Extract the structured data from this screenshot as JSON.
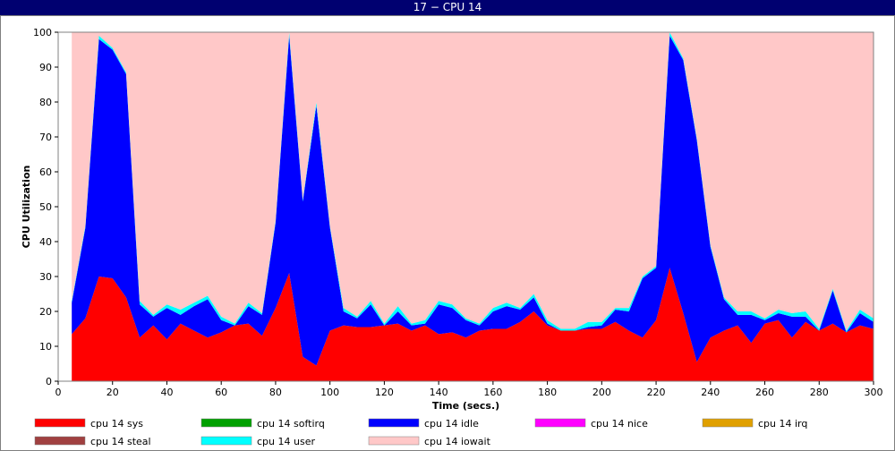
{
  "window": {
    "title": "17 − CPU 14"
  },
  "chart_data": {
    "type": "area",
    "stacked": true,
    "xlabel": "Time (secs.)",
    "ylabel": "CPU Utilization",
    "xlim": [
      0,
      300
    ],
    "ylim": [
      0,
      100
    ],
    "xticks": [
      0,
      20,
      40,
      60,
      80,
      100,
      120,
      140,
      160,
      180,
      200,
      220,
      240,
      260,
      280,
      300
    ],
    "yticks": [
      0,
      10,
      20,
      30,
      40,
      50,
      60,
      70,
      80,
      90,
      100
    ],
    "legend_position": "bottom",
    "x": [
      5,
      10,
      15,
      20,
      25,
      30,
      35,
      40,
      45,
      50,
      55,
      60,
      65,
      70,
      75,
      80,
      85,
      90,
      95,
      100,
      105,
      110,
      115,
      120,
      125,
      130,
      135,
      140,
      145,
      150,
      155,
      160,
      165,
      170,
      175,
      180,
      185,
      190,
      195,
      200,
      205,
      210,
      215,
      220,
      225,
      230,
      235,
      240,
      245,
      250,
      255,
      260,
      265,
      270,
      275,
      280,
      285,
      290,
      295,
      300
    ],
    "series": [
      {
        "name": "cpu 14 sys",
        "color": "#ff0000",
        "values": [
          13.5,
          18,
          30,
          29.5,
          24,
          12.5,
          16,
          12,
          16.5,
          14.5,
          12.5,
          14,
          16,
          16.5,
          13,
          21,
          31,
          7,
          4.5,
          14.5,
          16,
          15.5,
          15.5,
          16,
          16.5,
          14.5,
          16,
          13.5,
          14,
          12.5,
          14.5,
          15,
          15,
          17,
          20,
          16,
          14.5,
          14.5,
          15,
          15,
          17,
          14.5,
          12.5,
          17.5,
          32.5,
          19.5,
          5.5,
          12.5,
          14.5,
          16,
          11,
          16.5,
          17.5,
          12.5,
          17,
          14.5,
          16.5,
          14,
          16,
          15
        ]
      },
      {
        "name": "cpu 14 softirq",
        "color": "#00a000",
        "values": [
          0,
          0,
          0,
          0,
          0,
          0,
          0,
          0,
          0,
          0,
          0,
          0,
          0,
          0,
          0,
          0,
          0,
          0,
          0,
          0,
          0,
          0,
          0,
          0,
          0,
          0,
          0,
          0,
          0,
          0,
          0,
          0,
          0,
          0,
          0,
          0,
          0,
          0,
          0,
          0,
          0,
          0,
          0,
          0,
          0,
          0,
          0,
          0,
          0,
          0,
          0,
          0,
          0,
          0,
          0,
          0,
          0,
          0,
          0,
          0
        ]
      },
      {
        "name": "cpu 14 idle",
        "color": "#0000ff",
        "values": [
          9,
          26,
          68,
          65.5,
          64,
          9.5,
          2.5,
          9,
          2.5,
          7,
          11,
          3.5,
          0,
          5,
          6,
          24.5,
          68,
          44.5,
          74.5,
          29.5,
          4,
          2.5,
          6.5,
          0,
          3.5,
          1.5,
          0.5,
          8.5,
          7,
          5,
          1.5,
          5,
          6.5,
          3.5,
          4,
          0.5,
          0,
          0,
          0.5,
          1,
          3.5,
          5.5,
          17,
          15,
          66.5,
          72.5,
          63.5,
          26,
          9,
          3,
          8,
          1,
          2,
          6,
          1.5,
          0,
          9.5,
          0,
          3.5,
          2
        ]
      },
      {
        "name": "cpu 14 nice",
        "color": "#ff00ff",
        "values": [
          0,
          0,
          0,
          0,
          0,
          0,
          0,
          0,
          0,
          0,
          0,
          0,
          0,
          0,
          0,
          0,
          0,
          0,
          0,
          0,
          0,
          0,
          0,
          0,
          0,
          0,
          0,
          0,
          0,
          0,
          0,
          0,
          0,
          0,
          0,
          0,
          0,
          0,
          0,
          0,
          0,
          0,
          0,
          0,
          0,
          0,
          0,
          0,
          0,
          0,
          0,
          0,
          0,
          0,
          0,
          0,
          0,
          0,
          0,
          0
        ]
      },
      {
        "name": "cpu 14 irq",
        "color": "#e0a000",
        "values": [
          0,
          0,
          0,
          0,
          0,
          0,
          0,
          0,
          0,
          0,
          0,
          0,
          0,
          0,
          0,
          0,
          0,
          0,
          0,
          0,
          0,
          0,
          0,
          0,
          0,
          0,
          0,
          0,
          0,
          0,
          0,
          0,
          0,
          0,
          0,
          0,
          0,
          0,
          0,
          0,
          0,
          0,
          0,
          0,
          0,
          0,
          0,
          0,
          0,
          0,
          0,
          0,
          0,
          0,
          0,
          0,
          0,
          0,
          0,
          0
        ]
      },
      {
        "name": "cpu 14 steal",
        "color": "#a04040",
        "values": [
          0,
          0,
          0,
          0,
          0,
          0,
          0,
          0,
          0,
          0,
          0,
          0,
          0,
          0,
          0,
          0,
          0,
          0,
          0,
          0,
          0,
          0,
          0,
          0,
          0,
          0,
          0,
          0,
          0,
          0,
          0,
          0,
          0,
          0,
          0,
          0,
          0,
          0,
          0,
          0,
          0,
          0,
          0,
          0,
          0,
          0,
          0,
          0,
          0,
          0,
          0,
          0,
          0,
          0,
          0,
          0,
          0,
          0,
          0,
          0
        ]
      },
      {
        "name": "cpu 14 user",
        "color": "#00ffff",
        "values": [
          0.5,
          0.5,
          1,
          0.5,
          0.5,
          1,
          0.5,
          1,
          1.5,
          1,
          1,
          1,
          0.5,
          1,
          0.5,
          0.5,
          1,
          0.5,
          1,
          0.5,
          1,
          0.5,
          1,
          0.5,
          1.5,
          0.5,
          1,
          1,
          1,
          0.5,
          0.5,
          1,
          1,
          0.5,
          1,
          1,
          0.5,
          0.5,
          1.5,
          1,
          0.5,
          1,
          0.5,
          0.5,
          1,
          0.5,
          0.5,
          0.5,
          0.5,
          1,
          1,
          0.5,
          1,
          1,
          1.5,
          0.5,
          0.5,
          0.5,
          1,
          1
        ]
      },
      {
        "name": "cpu 14 iowait",
        "color": "#ffc8c8",
        "values": [
          77,
          55.5,
          1,
          4.5,
          11.5,
          77,
          81,
          78,
          79.5,
          77.5,
          75.5,
          81.5,
          83.5,
          77.5,
          80.5,
          54,
          0,
          48,
          20,
          55.5,
          79,
          81.5,
          77,
          83.5,
          78.5,
          83.5,
          82.5,
          77,
          78,
          82,
          83.5,
          79,
          77.5,
          79,
          75,
          82.5,
          85,
          85,
          83,
          83,
          79,
          79,
          70,
          67,
          0,
          7.5,
          30.5,
          61,
          76,
          80,
          80,
          82,
          79.5,
          80.5,
          80,
          85,
          73.5,
          85.5,
          79.5,
          82
        ]
      }
    ]
  }
}
